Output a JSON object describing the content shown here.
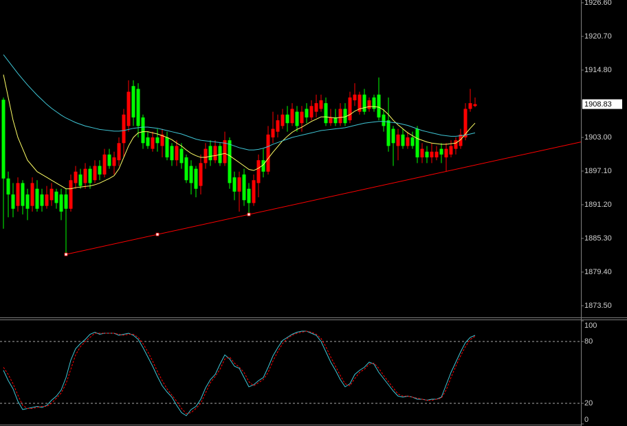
{
  "chart_data": [
    {
      "type": "candlestick",
      "open": [
        1909.6,
        1895.8,
        1893,
        1891,
        1895,
        1893,
        1891,
        1894,
        1893,
        1891,
        1892,
        1893.5,
        1893,
        1893,
        1890.5,
        1895,
        1896.5,
        1895,
        1897.5,
        1895.5,
        1898,
        1896.5,
        1900,
        1898,
        1899,
        1902,
        1905,
        1912,
        1911.5,
        1906.5,
        1903,
        1901,
        1903,
        1901.5,
        1903,
        1901.5,
        1899,
        1901,
        1899.5,
        1898,
        1897.5,
        1894.5,
        1898.5,
        1901.5,
        1899,
        1901.5,
        1898.5,
        1902.5,
        1896,
        1893.5,
        1896.5,
        1894,
        1891.5,
        1895,
        1899,
        1897,
        1903,
        1904,
        1905,
        1907,
        1905.5,
        1907.5,
        1905.5,
        1908,
        1906.5,
        1907.5,
        1908,
        1909,
        1905.5,
        1906.5,
        1905.5,
        1908,
        1906,
        1909.5,
        1907.5,
        1910.5,
        1908,
        1910,
        1910.5,
        1907,
        1906,
        1904.5,
        1901.5,
        1903.5,
        1901.5,
        1903,
        1904.5,
        1899.5,
        1900.5,
        1899.5,
        1899.5,
        1901,
        1899.5,
        1900,
        1901,
        1901.5,
        1903,
        1908,
        1908.5
      ],
      "high": [
        1910,
        1897,
        1895,
        1896,
        1895.5,
        1894,
        1896,
        1895.5,
        1894,
        1894.5,
        1895,
        1894,
        1894,
        1894,
        1896.5,
        1898,
        1897.5,
        1898.5,
        1898,
        1899,
        1899,
        1901,
        1901,
        1900.5,
        1903,
        1908,
        1913,
        1913,
        1912.5,
        1907,
        1904,
        1904,
        1904.5,
        1904.5,
        1904,
        1902,
        1902.5,
        1902,
        1900,
        1899,
        1898,
        1900,
        1902,
        1902.5,
        1902.5,
        1902,
        1904,
        1903,
        1897,
        1897,
        1897.5,
        1895,
        1896.5,
        1900,
        1901,
        1905,
        1907.5,
        1907,
        1908,
        1908.5,
        1909,
        1908.5,
        1908.5,
        1909,
        1909.5,
        1910.5,
        1910.5,
        1910,
        1908,
        1908,
        1909,
        1909,
        1911,
        1912.5,
        1911,
        1911.5,
        1910,
        1910.5,
        1913.5,
        1908,
        1910,
        1905,
        1904.5,
        1904.5,
        1904,
        1904,
        1905,
        1902,
        1901.5,
        1902,
        1901.5,
        1902,
        1902,
        1902.5,
        1903,
        1904.5,
        1909,
        1911.5,
        1910
      ],
      "low": [
        1887,
        1889,
        1889,
        1890,
        1889.5,
        1888.5,
        1890,
        1890,
        1890,
        1890.5,
        1891,
        1890.5,
        1888.5,
        1882.5,
        1890,
        1894,
        1894,
        1894,
        1894,
        1895,
        1895.5,
        1896,
        1897.5,
        1896.5,
        1898,
        1899.5,
        1904,
        1905,
        1903,
        1901,
        1901,
        1900.5,
        1900.5,
        1899.5,
        1899,
        1898,
        1898,
        1897.5,
        1895,
        1893,
        1892.5,
        1893,
        1897.5,
        1898,
        1898.5,
        1898,
        1898,
        1894,
        1892,
        1890,
        1891,
        1889.5,
        1891,
        1892.5,
        1896,
        1896.5,
        1902,
        1903,
        1904.5,
        1904,
        1905,
        1904,
        1904,
        1905.5,
        1906,
        1906.5,
        1907.5,
        1905,
        1905,
        1905,
        1905,
        1905,
        1905.5,
        1908.5,
        1907,
        1907,
        1907.5,
        1907.5,
        1906,
        1904,
        1900.5,
        1898,
        1899,
        1901,
        1901,
        1901,
        1898.5,
        1898.5,
        1898.5,
        1898.5,
        1899,
        1898.5,
        1897,
        1899.5,
        1900,
        1901,
        1902.5,
        1907.5,
        1908.3
      ],
      "close": [
        1895.8,
        1893,
        1890.5,
        1895,
        1891,
        1890.5,
        1895,
        1890.5,
        1891,
        1893,
        1894,
        1891.5,
        1890,
        1890.5,
        1895.5,
        1897,
        1894.5,
        1897.5,
        1895,
        1898,
        1896.5,
        1900,
        1898,
        1899.5,
        1902,
        1907,
        1911,
        1906.5,
        1905,
        1902,
        1901.5,
        1903,
        1902,
        1903.5,
        1899.5,
        1899,
        1901.5,
        1898.5,
        1895.5,
        1895,
        1894,
        1898.5,
        1901,
        1899,
        1901.5,
        1898.5,
        1902.5,
        1895,
        1893.5,
        1896,
        1892,
        1891.5,
        1895.5,
        1899,
        1897,
        1903.5,
        1904.5,
        1906,
        1907,
        1905.5,
        1908,
        1905,
        1907.5,
        1906.5,
        1908.5,
        1909,
        1909.5,
        1905.5,
        1906.5,
        1905.5,
        1908,
        1905.5,
        1910,
        1910.5,
        1910.5,
        1907.5,
        1909.5,
        1908,
        1906.5,
        1905,
        1901.5,
        1902,
        1903.5,
        1901.5,
        1903,
        1901.5,
        1899.5,
        1901,
        1899.5,
        1900.5,
        1900.5,
        1900,
        1901,
        1901.5,
        1902.5,
        1903.5,
        1908,
        1909,
        1908.83
      ],
      "up_color": "#ff0000",
      "down_color": "#00ff00",
      "series": [
        {
          "color": "#ffff66",
          "values": [
            1914,
            1910,
            1906,
            1903,
            1901,
            1899,
            1898,
            1897,
            1896.5,
            1896,
            1895.5,
            1895,
            1894.5,
            1894,
            1894,
            1894.2,
            1894.3,
            1894.4,
            1894.5,
            1894.7,
            1895,
            1895.4,
            1895.8,
            1896.3,
            1897.5,
            1899.5,
            1901.5,
            1903,
            1903.8,
            1904,
            1904,
            1903.8,
            1903.6,
            1903.3,
            1903,
            1902.6,
            1902,
            1901.5,
            1900.8,
            1900.2,
            1899.8,
            1899.5,
            1899.5,
            1899.7,
            1899.8,
            1900,
            1900.2,
            1899.8,
            1899.2,
            1898.6,
            1898,
            1897.4,
            1897.2,
            1897.6,
            1898.2,
            1899.3,
            1900.4,
            1901.4,
            1902.4,
            1903.2,
            1903.9,
            1904.4,
            1904.8,
            1905.3,
            1905.8,
            1906.2,
            1906.6,
            1906.6,
            1906.5,
            1906.4,
            1906.5,
            1906.6,
            1907,
            1907.6,
            1908,
            1908.2,
            1908.4,
            1908.4,
            1908.3,
            1907.8,
            1907,
            1906,
            1905.2,
            1904.5,
            1903.8,
            1903.3,
            1902.8,
            1902.5,
            1902.2,
            1902,
            1901.9,
            1901.8,
            1901.8,
            1901.9,
            1902,
            1902.6,
            1903.6,
            1904.6,
            1905.5
          ]
        },
        {
          "color": "#3fc6d6",
          "values": [
            1917.5,
            1916.4,
            1915.3,
            1914.2,
            1913.2,
            1912.2,
            1911.3,
            1910.4,
            1909.6,
            1908.8,
            1908.1,
            1907.5,
            1906.9,
            1906.4,
            1906,
            1905.6,
            1905.3,
            1905,
            1904.8,
            1904.6,
            1904.4,
            1904.3,
            1904.2,
            1904.1,
            1904.1,
            1904.2,
            1904.4,
            1904.6,
            1904.7,
            1904.8,
            1904.8,
            1904.7,
            1904.6,
            1904.4,
            1904.2,
            1904,
            1903.8,
            1903.6,
            1903.3,
            1903,
            1902.7,
            1902.5,
            1902.4,
            1902.3,
            1902.2,
            1902.1,
            1902,
            1901.8,
            1901.5,
            1901.2,
            1901,
            1900.8,
            1900.8,
            1900.9,
            1901.1,
            1901.4,
            1901.8,
            1902.1,
            1902.4,
            1902.7,
            1903,
            1903.2,
            1903.4,
            1903.6,
            1903.8,
            1904,
            1904.2,
            1904.3,
            1904.4,
            1904.5,
            1904.6,
            1904.7,
            1904.9,
            1905.1,
            1905.3,
            1905.5,
            1905.6,
            1905.7,
            1905.8,
            1905.8,
            1905.7,
            1905.6,
            1905.5,
            1905.3,
            1905.1,
            1904.8,
            1904.5,
            1904.2,
            1904,
            1903.8,
            1903.6,
            1903.4,
            1903.3,
            1903.2,
            1903.2,
            1903.3,
            1903.4,
            1903.6,
            1903.8
          ]
        }
      ],
      "trendline": {
        "color": "#ff0000",
        "x": [
          13,
          120
        ],
        "y": [
          1882.5,
          1902.2
        ]
      },
      "trendline_points": {
        "x": [
          13,
          32,
          51
        ],
        "y": [
          1882.5,
          1886.0,
          1889.5
        ]
      },
      "current_price": 1908.83,
      "ylim": [
        1871.45,
        1927.08
      ],
      "yticks": [
        {
          "value": 1926.6,
          "label": "1926.60"
        },
        {
          "value": 1920.7,
          "label": "1920.70"
        },
        {
          "value": 1914.8,
          "label": "1914.80"
        },
        {
          "value": 1903,
          "label": "1903.00"
        },
        {
          "value": 1897.1,
          "label": "1897.10"
        },
        {
          "value": 1891.2,
          "label": "1891.20"
        },
        {
          "value": 1885.3,
          "label": "1885.30"
        },
        {
          "value": 1879.4,
          "label": "1879.40"
        },
        {
          "value": 1873.5,
          "label": "1873.50"
        }
      ]
    },
    {
      "type": "line",
      "series": [
        {
          "color": "#3fc6d6",
          "values": [
            52,
            42,
            34,
            22,
            14,
            15,
            16,
            17,
            16,
            18,
            23,
            27,
            33,
            45,
            62,
            73,
            78,
            82,
            87,
            89,
            87,
            88,
            88,
            88,
            86,
            87,
            88,
            86,
            82,
            74,
            65,
            56,
            46,
            37,
            31,
            26,
            18,
            11,
            8,
            14,
            17,
            24,
            35,
            43,
            48,
            58,
            67,
            63,
            56,
            54,
            45,
            36,
            38,
            42,
            45,
            55,
            66,
            74,
            81,
            84,
            87,
            89,
            90,
            90,
            88,
            86,
            80,
            70,
            60,
            52,
            43,
            36,
            39,
            48,
            52,
            55,
            60,
            58,
            50,
            44,
            38,
            32,
            27,
            26,
            27,
            26,
            24,
            24,
            23,
            24,
            24,
            26,
            38,
            50,
            60,
            70,
            79,
            84,
            86
          ]
        },
        {
          "color": "#ff0000",
          "dash": true,
          "values": [
            55,
            48,
            39,
            28,
            18,
            15,
            15,
            16,
            17,
            17,
            20,
            25,
            30,
            39,
            53,
            67,
            75,
            80,
            84,
            88,
            88,
            88,
            88,
            88,
            87,
            86,
            87,
            87,
            84,
            78,
            70,
            61,
            51,
            42,
            34,
            28,
            22,
            15,
            10,
            11,
            15,
            20,
            30,
            40,
            46,
            53,
            63,
            65,
            59,
            55,
            50,
            41,
            37,
            40,
            43,
            50,
            61,
            70,
            78,
            83,
            86,
            88,
            89,
            90,
            89,
            87,
            83,
            75,
            65,
            56,
            47,
            39,
            37,
            44,
            50,
            53,
            58,
            59,
            54,
            47,
            41,
            35,
            29,
            27,
            27,
            26,
            25,
            24,
            23,
            23,
            24,
            25,
            33,
            45,
            56,
            66,
            75,
            82,
            85
          ]
        }
      ],
      "levels": [
        20,
        80
      ],
      "ylim": [
        0,
        100
      ],
      "yticks": [
        100,
        80,
        20,
        0
      ]
    }
  ]
}
